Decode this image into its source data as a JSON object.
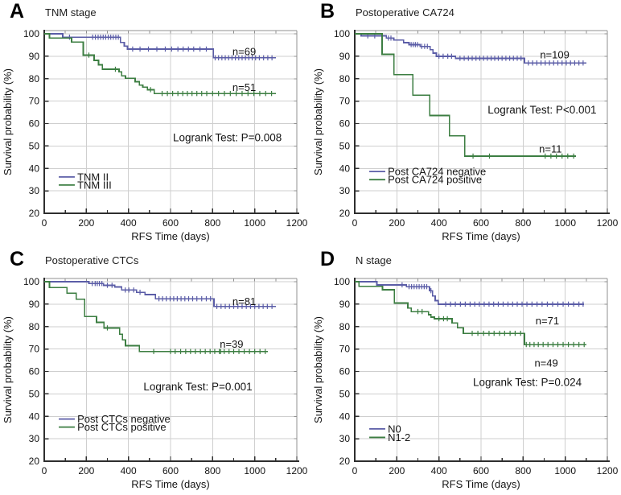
{
  "styles": {
    "blue": "#5b5da7",
    "green": "#3c7e42",
    "grid": "#cfcfcf",
    "axis_dark": "#2e2e2e",
    "axis_light": "#909090",
    "text": "#141414",
    "background": "#ffffff"
  },
  "axes": {
    "xlabel": "RFS Time (days)",
    "ylabel": "Survival probability (%)",
    "xlim": [
      0,
      1200
    ],
    "ylim": [
      20,
      100
    ],
    "xticks": [
      0,
      200,
      400,
      600,
      800,
      1000,
      1200
    ],
    "yticks": [
      20,
      30,
      40,
      50,
      60,
      70,
      80,
      90,
      100
    ],
    "x_minor_step": 100,
    "grid": "on",
    "legend_position": "lower-left-inside"
  },
  "chart_data": [
    {
      "type": "line",
      "panel_letter": "A",
      "title": "TNM stage",
      "annotation": {
        "text": "Logrank Test: P=0.008",
        "x": 870,
        "y": 53.5
      },
      "legend": {
        "rows_y": [
          36.2,
          32.6
        ],
        "swatch_days": [
          69,
          145
        ],
        "text_x": 157
      },
      "series": [
        {
          "name": "TNM II",
          "color": "blue",
          "n_label": {
            "text": "n=69",
            "x": 950,
            "y": 92
          },
          "steps": [
            [
              0,
              100
            ],
            [
              88,
              98.5
            ],
            [
              362,
              96.2
            ],
            [
              380,
              94.6
            ],
            [
              395,
              93.2
            ],
            [
              803,
              89.3
            ],
            [
              1100,
              89.3
            ]
          ],
          "censors": [
            {
              "y": 98.5,
              "x": [
                120,
                230,
                243,
                256,
                268,
                280,
                292,
                304,
                316,
                328,
                340,
                352
              ]
            },
            {
              "y": 93.2,
              "x": [
                420,
                455,
                495,
                535,
                575,
                605,
                635,
                660,
                685,
                710,
                740,
                770
              ]
            },
            {
              "y": 89.3,
              "x": [
                812,
                828,
                844,
                860,
                876,
                892,
                908,
                924,
                940,
                956,
                972,
                988,
                1004,
                1022,
                1042,
                1062,
                1082
              ]
            }
          ]
        },
        {
          "name": "TNM III",
          "color": "green",
          "n_label": {
            "text": "n=51",
            "x": 950,
            "y": 76
          },
          "steps": [
            [
              0,
              100
            ],
            [
              25,
              98.1
            ],
            [
              130,
              96.3
            ],
            [
              185,
              90.5
            ],
            [
              237,
              88.2
            ],
            [
              258,
              86.2
            ],
            [
              276,
              84.2
            ],
            [
              355,
              83.1
            ],
            [
              368,
              81.3
            ],
            [
              386,
              80.2
            ],
            [
              432,
              78.7
            ],
            [
              452,
              77.2
            ],
            [
              468,
              76.2
            ],
            [
              490,
              75.1
            ],
            [
              522,
              73.4
            ],
            [
              1100,
              73.4
            ]
          ],
          "censors": [
            {
              "y": 90.5,
              "x": [
                212
              ]
            },
            {
              "y": 84.2,
              "x": [
                338
              ]
            },
            {
              "y": 75.1,
              "x": [
                505
              ]
            },
            {
              "y": 73.4,
              "x": [
                560,
                585,
                610,
                635,
                658,
                680,
                702,
                725,
                748,
                772,
                800,
                828,
                856,
                884,
                912,
                940,
                968,
                996,
                1024,
                1052,
                1080
              ]
            }
          ]
        }
      ]
    },
    {
      "type": "line",
      "panel_letter": "B",
      "title": "Postoperative CA724",
      "annotation": {
        "text": "Logrank Test: P<0.001",
        "x": 890,
        "y": 66
      },
      "legend": {
        "rows_y": [
          38.6,
          35.0
        ],
        "swatch_days": [
          69,
          145
        ],
        "text_x": 157
      },
      "series": [
        {
          "name": "Post CA724 negative",
          "color": "blue",
          "n_label": {
            "text": "n=109",
            "x": 950,
            "y": 90.5
          },
          "steps": [
            [
              0,
              100
            ],
            [
              30,
              99.1
            ],
            [
              150,
              98.1
            ],
            [
              185,
              97.2
            ],
            [
              232,
              96.1
            ],
            [
              258,
              95.2
            ],
            [
              310,
              94.4
            ],
            [
              358,
              92.9
            ],
            [
              372,
              91.4
            ],
            [
              388,
              90
            ],
            [
              478,
              89.1
            ],
            [
              806,
              87
            ],
            [
              1100,
              87
            ]
          ],
          "censors": [
            {
              "y": 99.1,
              "x": [
                62,
                95
              ]
            },
            {
              "y": 98.1,
              "x": [
                160,
                172
              ]
            },
            {
              "y": 95.2,
              "x": [
                268,
                278,
                288,
                298
              ]
            },
            {
              "y": 94.4,
              "x": [
                318,
                332,
                345
              ]
            },
            {
              "y": 90,
              "x": [
                400,
                420,
                442,
                460
              ]
            },
            {
              "y": 89.1,
              "x": [
                500,
                520,
                540,
                558,
                576,
                594,
                612,
                630,
                648,
                665,
                682,
                700,
                718,
                736,
                754,
                772,
                790
              ]
            },
            {
              "y": 87,
              "x": [
                825,
                845,
                865,
                885,
                905,
                925,
                945,
                965,
                985,
                1005,
                1025,
                1045,
                1065,
                1085
              ]
            }
          ]
        },
        {
          "name": "Post CA724 positive",
          "color": "green",
          "n_label": {
            "text": "n=11",
            "x": 930,
            "y": 48.5
          },
          "steps": [
            [
              0,
              100
            ],
            [
              130,
              90.9
            ],
            [
              186,
              81.8
            ],
            [
              276,
              72.7
            ],
            [
              356,
              63.6
            ],
            [
              450,
              54.5
            ],
            [
              522,
              45.5
            ],
            [
              1050,
              45.5
            ]
          ],
          "censors": [
            {
              "y": 45.5,
              "x": [
                562,
                640,
                905,
                932,
                958,
                985,
                1012,
                1040
              ]
            }
          ]
        }
      ]
    },
    {
      "type": "line",
      "panel_letter": "C",
      "title": "Postoperative CTCs",
      "annotation": {
        "text": "Logrank Test: P=0.001",
        "x": 730,
        "y": 53
      },
      "legend": {
        "rows_y": [
          38.8,
          35.2
        ],
        "swatch_days": [
          69,
          145
        ],
        "text_x": 157
      },
      "series": [
        {
          "name": "Post CTCs negative",
          "color": "blue",
          "n_label": {
            "text": "n=81",
            "x": 950,
            "y": 91
          },
          "steps": [
            [
              0,
              100
            ],
            [
              212,
              99.2
            ],
            [
              282,
              98.4
            ],
            [
              335,
              97.7
            ],
            [
              368,
              96.3
            ],
            [
              438,
              95.3
            ],
            [
              478,
              94.3
            ],
            [
              528,
              92.4
            ],
            [
              806,
              89
            ],
            [
              1100,
              89
            ]
          ],
          "censors": [
            {
              "y": 99.2,
              "x": [
                228,
                242,
                252,
                262,
                274
              ]
            },
            {
              "y": 98.4,
              "x": [
                300,
                322
              ]
            },
            {
              "y": 96.3,
              "x": [
                385,
                402,
                425
              ]
            },
            {
              "y": 95.3,
              "x": [
                455
              ]
            },
            {
              "y": 92.4,
              "x": [
                545,
                562,
                580,
                598,
                615,
                632,
                650,
                668,
                686,
                705,
                725,
                748,
                770,
                790
              ]
            },
            {
              "y": 89,
              "x": [
                820,
                840,
                860,
                880,
                900,
                920,
                940,
                960,
                980,
                1000,
                1020,
                1040,
                1060,
                1082
              ]
            }
          ]
        },
        {
          "name": "Post CTCs positive",
          "color": "green",
          "n_label": {
            "text": "n=39",
            "x": 890,
            "y": 72
          },
          "steps": [
            [
              0,
              100
            ],
            [
              25,
              97.4
            ],
            [
              108,
              94.9
            ],
            [
              152,
              92.2
            ],
            [
              192,
              84.5
            ],
            [
              248,
              81.9
            ],
            [
              283,
              79.4
            ],
            [
              358,
              76.6
            ],
            [
              372,
              74.1
            ],
            [
              386,
              71.5
            ],
            [
              452,
              68.9
            ],
            [
              1062,
              68.9
            ]
          ],
          "censors": [
            {
              "y": 79.4,
              "x": [
                300
              ]
            },
            {
              "y": 68.9,
              "x": [
                520,
                600,
                622,
                648,
                672,
                695,
                718,
                742,
                765,
                788,
                810,
                832,
                838,
                855,
                878,
                900,
                925,
                950,
                975,
                1000,
                1025,
                1050
              ]
            }
          ]
        }
      ]
    },
    {
      "type": "line",
      "panel_letter": "D",
      "title": "N stage",
      "annotation": {
        "text": "Logrank Test: P=0.024",
        "x": 820,
        "y": 55
      },
      "legend": {
        "rows_y": [
          34.4,
          30.6
        ],
        "swatch_days": [
          69,
          145
        ],
        "text_x": 157
      },
      "series": [
        {
          "name": "N0",
          "color": "blue",
          "n_label": {
            "text": "n=71",
            "x": 915,
            "y": 82.5
          },
          "steps": [
            [
              0,
              100
            ],
            [
              105,
              98.6
            ],
            [
              245,
              97.8
            ],
            [
              355,
              96
            ],
            [
              370,
              93.6
            ],
            [
              382,
              91.6
            ],
            [
              396,
              90
            ],
            [
              1090,
              90
            ]
          ],
          "censors": [
            {
              "y": 98.6,
              "x": [
                225
              ]
            },
            {
              "y": 97.8,
              "x": [
                258,
                270,
                282,
                294,
                306,
                318,
                330,
                342
              ]
            },
            {
              "y": 96,
              "x": [
                362
              ]
            },
            {
              "y": 90,
              "x": [
                432,
                455,
                478,
                502,
                525,
                548,
                570,
                592,
                615,
                638,
                660,
                682,
                705,
                728,
                750,
                772,
                795,
                818,
                842,
                866,
                890,
                915,
                940,
                965,
                990,
                1015,
                1040,
                1065,
                1085
              ]
            }
          ]
        },
        {
          "name": "N1-2",
          "color": "green",
          "n_label": {
            "text": "n=49",
            "x": 910,
            "y": 63.5
          },
          "steps": [
            [
              0,
              100
            ],
            [
              20,
              98
            ],
            [
              132,
              96.4
            ],
            [
              188,
              90.5
            ],
            [
              252,
              88.3
            ],
            [
              268,
              86.7
            ],
            [
              350,
              85.3
            ],
            [
              362,
              84.2
            ],
            [
              378,
              83.5
            ],
            [
              462,
              81.6
            ],
            [
              488,
              79.5
            ],
            [
              516,
              77
            ],
            [
              806,
              72
            ],
            [
              1100,
              72
            ]
          ],
          "censors": [
            {
              "y": 86.7,
              "x": [
                300,
                320
              ]
            },
            {
              "y": 83.5,
              "x": [
                400,
                422,
                440
              ]
            },
            {
              "y": 77,
              "x": [
                558,
                585,
                612,
                638,
                662,
                688,
                712,
                738,
                762,
                788
              ]
            },
            {
              "y": 72,
              "x": [
                815,
                832,
                852,
                872,
                895,
                918,
                942,
                965,
                990,
                1015,
                1040,
                1065,
                1090
              ]
            }
          ]
        }
      ]
    }
  ]
}
